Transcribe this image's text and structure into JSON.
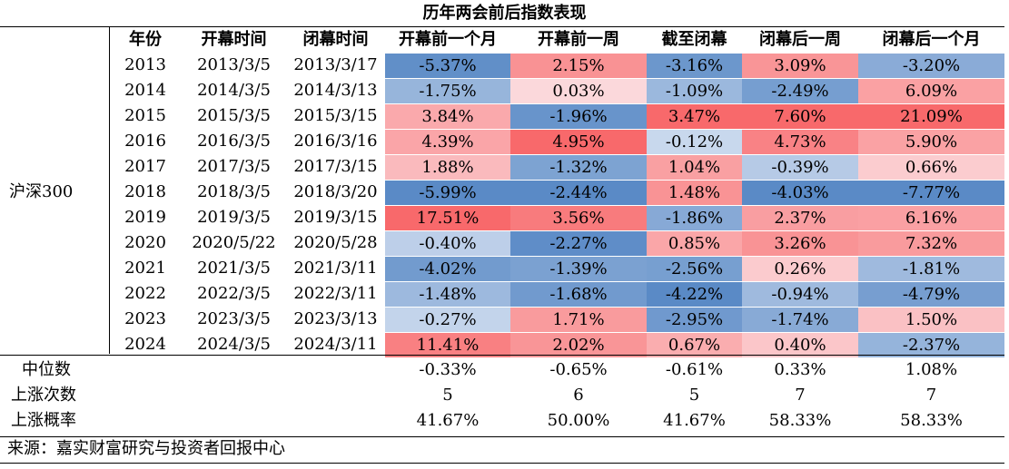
{
  "chart_data": {
    "type": "table",
    "title": "历年两会前后指数表现",
    "group_label": "沪深300",
    "columns": [
      "年份",
      "开幕时间",
      "闭幕时间",
      "开幕前一个月",
      "开幕前一周",
      "截至闭幕",
      "闭幕后一周",
      "闭幕后一个月"
    ],
    "rows": [
      {
        "year": "2013",
        "open": "2013/3/5",
        "close": "2013/3/17",
        "values": [
          "-5.37%",
          "2.15%",
          "-3.16%",
          "3.09%",
          "-3.20%"
        ]
      },
      {
        "year": "2014",
        "open": "2014/3/5",
        "close": "2014/3/13",
        "values": [
          "-1.75%",
          "0.03%",
          "-1.09%",
          "-2.49%",
          "6.09%"
        ]
      },
      {
        "year": "2015",
        "open": "2015/3/5",
        "close": "2015/3/15",
        "values": [
          "3.84%",
          "-1.96%",
          "3.47%",
          "7.60%",
          "21.09%"
        ]
      },
      {
        "year": "2016",
        "open": "2016/3/5",
        "close": "2016/3/16",
        "values": [
          "4.39%",
          "4.95%",
          "-0.12%",
          "4.73%",
          "5.90%"
        ]
      },
      {
        "year": "2017",
        "open": "2017/3/5",
        "close": "2017/3/15",
        "values": [
          "1.88%",
          "-1.32%",
          "1.04%",
          "-0.39%",
          "0.66%"
        ]
      },
      {
        "year": "2018",
        "open": "2018/3/5",
        "close": "2018/3/20",
        "values": [
          "-5.99%",
          "-2.44%",
          "1.48%",
          "-4.03%",
          "-7.77%"
        ]
      },
      {
        "year": "2019",
        "open": "2019/3/5",
        "close": "2019/3/15",
        "values": [
          "17.51%",
          "3.56%",
          "-1.86%",
          "2.37%",
          "6.16%"
        ]
      },
      {
        "year": "2020",
        "open": "2020/5/22",
        "close": "2020/5/28",
        "values": [
          "-0.40%",
          "-2.27%",
          "0.85%",
          "3.26%",
          "7.32%"
        ]
      },
      {
        "year": "2021",
        "open": "2021/3/5",
        "close": "2021/3/11",
        "values": [
          "-4.02%",
          "-1.39%",
          "-2.56%",
          "0.26%",
          "-1.81%"
        ]
      },
      {
        "year": "2022",
        "open": "2022/3/5",
        "close": "2022/3/11",
        "values": [
          "-1.48%",
          "-1.68%",
          "-4.22%",
          "-0.94%",
          "-4.79%"
        ]
      },
      {
        "year": "2023",
        "open": "2023/3/5",
        "close": "2023/3/13",
        "values": [
          "-0.27%",
          "1.71%",
          "-2.95%",
          "-1.74%",
          "1.50%"
        ]
      },
      {
        "year": "2024",
        "open": "2024/3/5",
        "close": "2024/3/11",
        "values": [
          "11.41%",
          "2.02%",
          "0.67%",
          "0.40%",
          "-2.37%"
        ]
      }
    ],
    "summary": [
      {
        "label": "中位数",
        "values": [
          "-0.33%",
          "-0.65%",
          "-0.61%",
          "0.33%",
          "1.08%"
        ]
      },
      {
        "label": "上涨次数",
        "values": [
          "5",
          "6",
          "5",
          "7",
          "7"
        ]
      },
      {
        "label": "上涨概率",
        "values": [
          "41.67%",
          "50.00%",
          "41.67%",
          "58.33%",
          "58.33%"
        ]
      }
    ],
    "source": "来源：嘉实财富研究与投资者回报中心",
    "colors": {
      "positive": "#f8696b",
      "negative": "#5a8ac6",
      "neutral": "#fcfcff"
    }
  }
}
